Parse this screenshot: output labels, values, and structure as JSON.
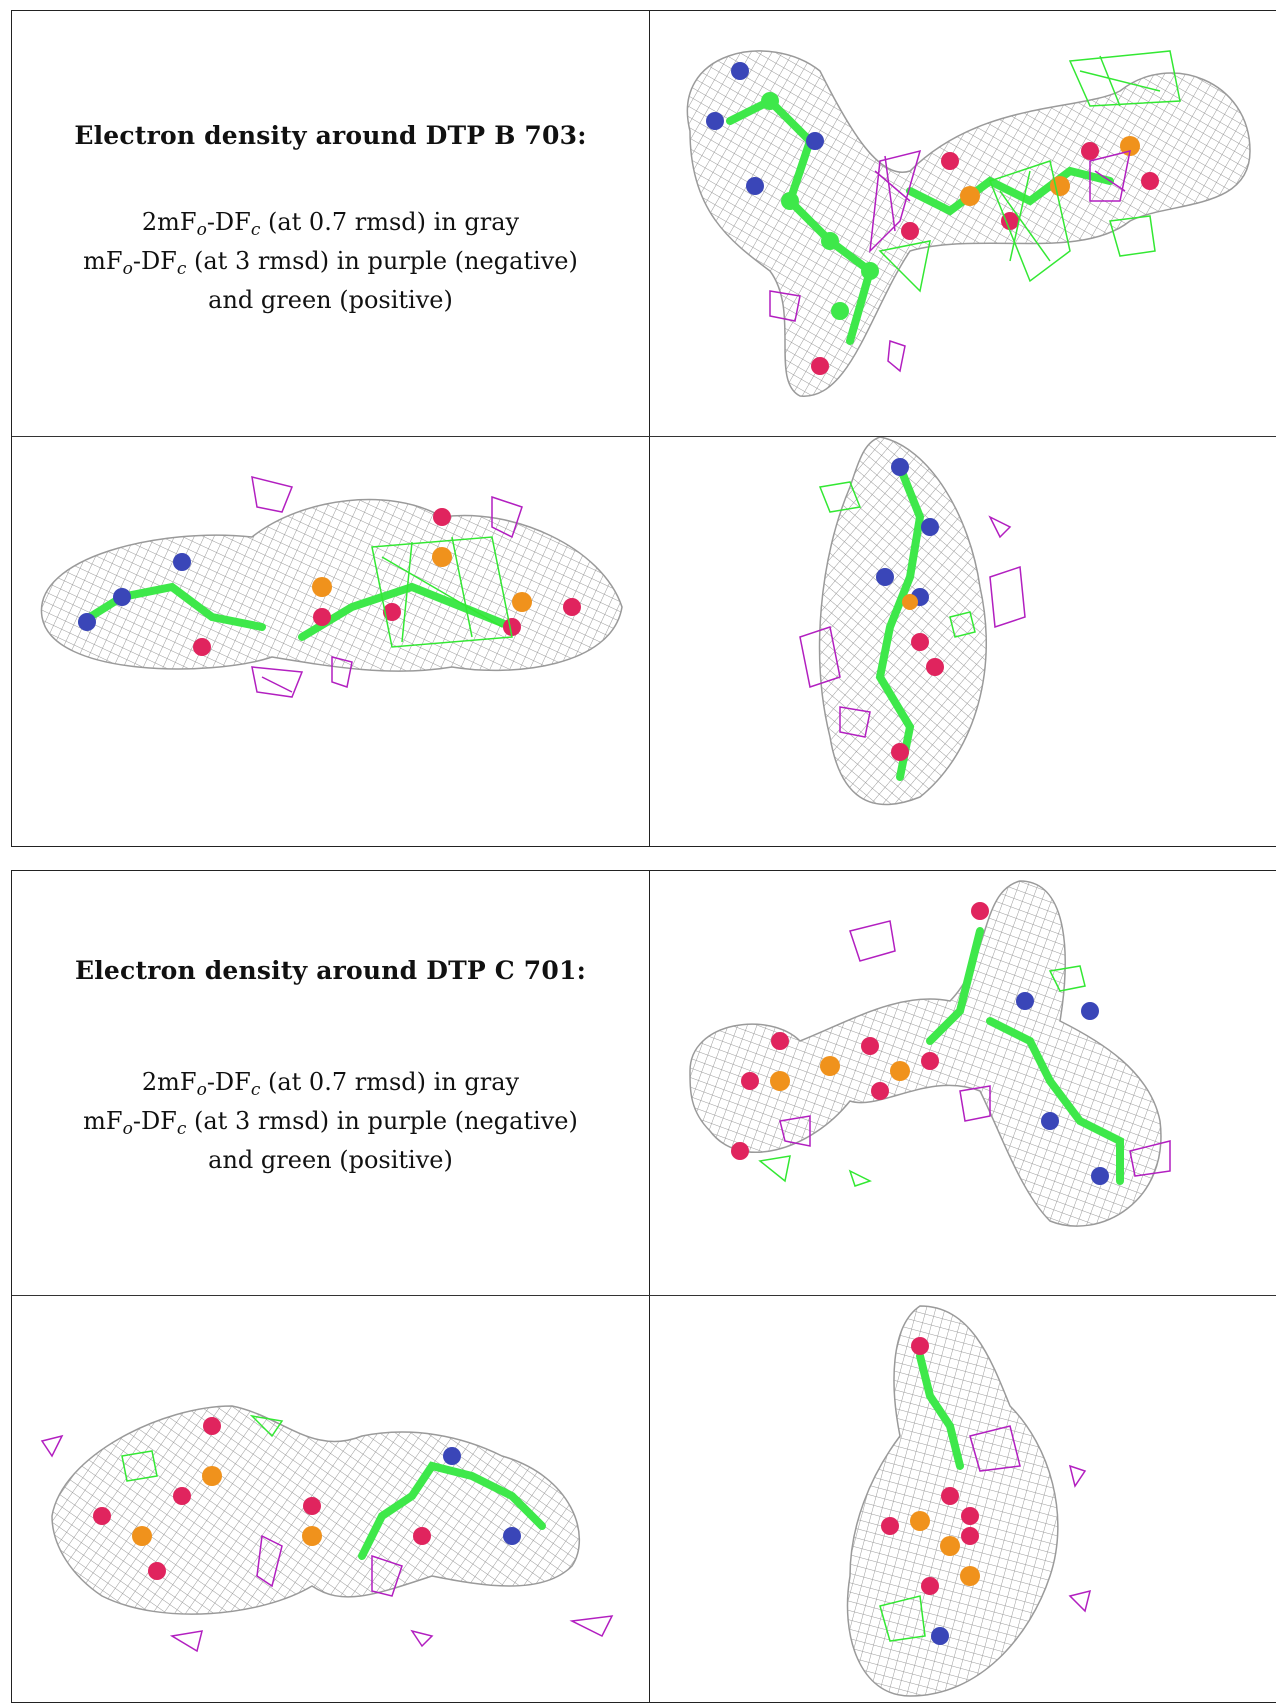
{
  "panels": [
    {
      "title": "Electron density around DTP B 703:",
      "legend": {
        "line1_a": "2mF",
        "line1_sub1": "o",
        "line1_b": "-DF",
        "line1_sub2": "c",
        "line1_c": " (at 0.7 rmsd) in gray",
        "line2_a": "mF",
        "line2_sub1": "o",
        "line2_b": "-DF",
        "line2_sub2": "c",
        "line2_c": " (at 3 rmsd) in purple (negative)",
        "line3": "and green (positive)"
      }
    },
    {
      "title": "Electron density around DTP C 701:",
      "legend": {
        "line1_a": "2mF",
        "line1_sub1": "o",
        "line1_b": "-DF",
        "line1_sub2": "c",
        "line1_c": " (at 0.7 rmsd) in gray",
        "line2_a": "mF",
        "line2_sub1": "o",
        "line2_b": "-DF",
        "line2_sub2": "c",
        "line2_c": " (at 3 rmsd) in purple (negative)",
        "line3": "and green (positive)"
      }
    }
  ],
  "colors": {
    "mesh_gray": "#9a9a9a",
    "negative_purple": "#b21fc0",
    "positive_green": "#33e833",
    "carbon_green": "#3ee84a",
    "nitrogen_blue": "#3a46b8",
    "oxygen_red": "#e0245e",
    "phosphorus_orange": "#f0921c"
  }
}
